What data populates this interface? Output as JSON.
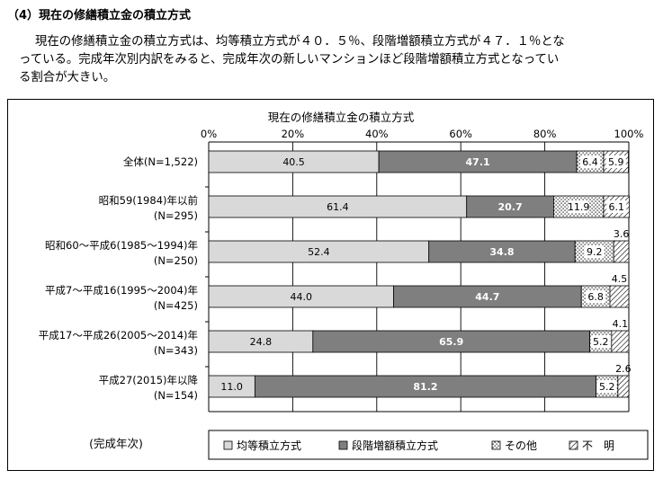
{
  "heading": "（4）現在の修繕積立金の積立方式",
  "intro": {
    "line1": "現在の修繕積立金の積立方式は、均等積立方式が４０．５％、段階増額積立方式が４７．１％とな",
    "line2": "っている。完成年次別内訳をみると、完成年次の新しいマンションほど段階増額積立方式となってい",
    "line3": "る割合が大きい。"
  },
  "chart_data": {
    "type": "bar",
    "orientation": "horizontal",
    "stacked": true,
    "title": "現在の修繕積立金の積立方式",
    "xlim": [
      0,
      100
    ],
    "x_ticks": [
      "0%",
      "20%",
      "40%",
      "60%",
      "80%",
      "100%"
    ],
    "grid": true,
    "axis_caption": "(完成年次)",
    "legend_position": "bottom",
    "categories": [
      {
        "line1": "全体(N=1,522)",
        "line2": ""
      },
      {
        "line1": "昭和59(1984)年以前",
        "line2": "(N=295)"
      },
      {
        "line1": "昭和60～平成6(1985～1994)年",
        "line2": "(N=250)"
      },
      {
        "line1": "平成7～平成16(1995～2004)年",
        "line2": "(N=425)"
      },
      {
        "line1": "平成17～平成26(2005～2014)年",
        "line2": "(N=343)"
      },
      {
        "line1": "平成27(2015)年以降",
        "line2": "(N=154)"
      }
    ],
    "series": [
      {
        "name": "均等積立方式",
        "color": "#d9d9d9",
        "pattern": "solid",
        "values": [
          40.5,
          61.4,
          52.4,
          44.0,
          24.8,
          11.0
        ],
        "labels": [
          "40.5",
          "61.4",
          "52.4",
          "44.0",
          "24.8",
          "11.0"
        ]
      },
      {
        "name": "段階増額積立方式",
        "color": "#7f7f7f",
        "pattern": "solid",
        "values": [
          47.1,
          20.7,
          34.8,
          44.7,
          65.9,
          81.2
        ],
        "labels": [
          "47.1",
          "20.7",
          "34.8",
          "44.7",
          "65.9",
          "81.2"
        ]
      },
      {
        "name": "その他",
        "color": "#ffffff",
        "pattern": "dots",
        "values": [
          6.4,
          11.9,
          9.2,
          6.8,
          5.2,
          5.2
        ],
        "labels": [
          "6.4",
          "11.9",
          "9.2",
          "6.8",
          "5.2",
          "5.2"
        ]
      },
      {
        "name": "不　明",
        "color": "#ffffff",
        "pattern": "hatch",
        "values": [
          5.9,
          6.1,
          3.6,
          4.5,
          4.1,
          2.6
        ],
        "labels": [
          "5.9",
          "6.1",
          "3.6",
          "4.5",
          "4.1",
          "2.6"
        ]
      }
    ],
    "colors": {
      "grid": "#000000",
      "dark_label_text": "#ffffff",
      "light_label_text": "#000000"
    }
  }
}
